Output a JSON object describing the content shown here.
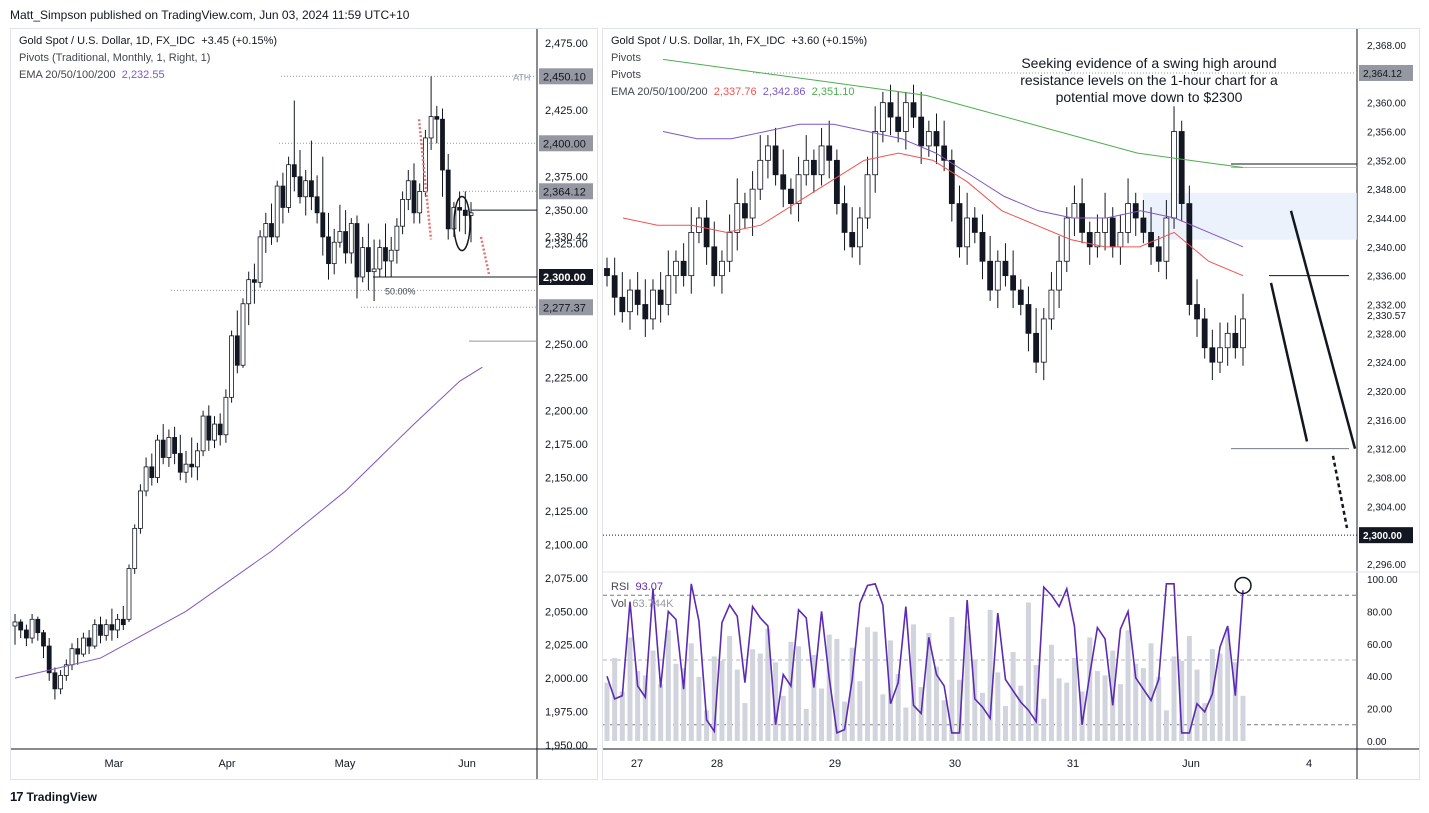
{
  "header": {
    "published": "Matt_Simpson published on TradingView.com, Jun 03, 2024 11:59 UTC+10"
  },
  "footer": {
    "brand": "TradingView"
  },
  "colors": {
    "up": "#ffffff",
    "down": "#131722",
    "ema_red": "#ef5350",
    "ema_purple": "#7e57c2",
    "ema_green": "#4caf50",
    "rsi": "#5b2bb3",
    "arrow_red": "#e57373"
  },
  "chart_data": [
    {
      "type": "candlestick",
      "title": "Gold Spot / U.S. Dollar, 1D, FX_IDC",
      "change": "+3.45 (+0.15%)",
      "legend": [
        "Pivots (Traditional, Monthly, 1, Right, 1)",
        "EMA 20/50/100/200"
      ],
      "ema_value": "2,232.55",
      "y_ticks": [
        "2,475.00",
        "2,450.10",
        "2,425.00",
        "2,400.00",
        "2,375.00",
        "2,364.12",
        "2,350.00",
        "2,330.42",
        "2,325.00",
        "2,300.00",
        "2,277.37",
        "2,250.00",
        "2,225.00",
        "2,200.00",
        "2,175.00",
        "2,150.00",
        "2,125.00",
        "2,100.00",
        "2,075.00",
        "2,050.00",
        "2,025.00",
        "2,000.00",
        "1,975.00",
        "1,950.00"
      ],
      "x_labels": [
        "Mar",
        "Apr",
        "May",
        "Jun"
      ],
      "annotations": {
        "ath": "ATH",
        "fib": "50.00%"
      },
      "price_tags": [
        {
          "label": "2,450.10",
          "value": 2450.1,
          "style": "grey"
        },
        {
          "label": "2,400.00",
          "value": 2400,
          "style": "grey"
        },
        {
          "label": "2,364.12",
          "value": 2364.12,
          "style": "grey"
        },
        {
          "label": "2,330.42",
          "value": 2330.42,
          "style": "plain"
        },
        {
          "label": "2,300.00",
          "value": 2300,
          "style": "black"
        },
        {
          "label": "2,277.37",
          "value": 2277.37,
          "style": "grey"
        }
      ],
      "ohlc": [
        [
          2039,
          2048,
          2025,
          2042
        ],
        [
          2042,
          2044,
          2030,
          2036
        ],
        [
          2036,
          2040,
          2024,
          2030
        ],
        [
          2030,
          2048,
          2026,
          2044
        ],
        [
          2044,
          2046,
          2028,
          2034
        ],
        [
          2034,
          2036,
          2015,
          2024
        ],
        [
          2024,
          2030,
          1998,
          2004
        ],
        [
          2004,
          2008,
          1984,
          1992
        ],
        [
          1992,
          2006,
          1988,
          2002
        ],
        [
          2002,
          2014,
          1998,
          2010
        ],
        [
          2010,
          2026,
          2006,
          2022
        ],
        [
          2022,
          2030,
          2010,
          2018
        ],
        [
          2018,
          2034,
          2016,
          2030
        ],
        [
          2030,
          2036,
          2018,
          2024
        ],
        [
          2024,
          2044,
          2022,
          2040
        ],
        [
          2040,
          2046,
          2026,
          2032
        ],
        [
          2032,
          2044,
          2028,
          2040
        ],
        [
          2040,
          2052,
          2028,
          2036
        ],
        [
          2036,
          2048,
          2030,
          2044
        ],
        [
          2044,
          2054,
          2036,
          2040
        ],
        [
          2044,
          2085,
          2042,
          2082
        ],
        [
          2082,
          2115,
          2078,
          2112
        ],
        [
          2112,
          2145,
          2108,
          2140
        ],
        [
          2140,
          2165,
          2136,
          2158
        ],
        [
          2158,
          2168,
          2144,
          2150
        ],
        [
          2150,
          2182,
          2146,
          2178
        ],
        [
          2178,
          2190,
          2160,
          2165
        ],
        [
          2165,
          2186,
          2158,
          2180
        ],
        [
          2180,
          2188,
          2160,
          2168
        ],
        [
          2168,
          2182,
          2148,
          2154
        ],
        [
          2154,
          2170,
          2146,
          2160
        ],
        [
          2160,
          2180,
          2150,
          2158
        ],
        [
          2158,
          2176,
          2148,
          2170
        ],
        [
          2170,
          2200,
          2166,
          2196
        ],
        [
          2196,
          2204,
          2170,
          2178
        ],
        [
          2178,
          2196,
          2172,
          2190
        ],
        [
          2190,
          2198,
          2174,
          2182
        ],
        [
          2182,
          2216,
          2176,
          2210
        ],
        [
          2210,
          2260,
          2206,
          2256
        ],
        [
          2256,
          2275,
          2228,
          2234
        ],
        [
          2234,
          2284,
          2232,
          2280
        ],
        [
          2280,
          2304,
          2264,
          2298
        ],
        [
          2298,
          2310,
          2280,
          2296
        ],
        [
          2296,
          2335,
          2292,
          2330
        ],
        [
          2330,
          2348,
          2318,
          2340
        ],
        [
          2340,
          2355,
          2324,
          2330
        ],
        [
          2330,
          2372,
          2326,
          2368
        ],
        [
          2368,
          2378,
          2340,
          2352
        ],
        [
          2352,
          2390,
          2348,
          2384
        ],
        [
          2384,
          2432,
          2364,
          2375
        ],
        [
          2375,
          2395,
          2355,
          2360
        ],
        [
          2360,
          2380,
          2346,
          2372
        ],
        [
          2372,
          2402,
          2350,
          2360
        ],
        [
          2360,
          2376,
          2340,
          2348
        ],
        [
          2348,
          2390,
          2316,
          2330
        ],
        [
          2330,
          2348,
          2298,
          2310
        ],
        [
          2310,
          2336,
          2302,
          2326
        ],
        [
          2326,
          2354,
          2322,
          2334
        ],
        [
          2334,
          2350,
          2310,
          2318
        ],
        [
          2318,
          2344,
          2310,
          2340
        ],
        [
          2340,
          2346,
          2284,
          2300
        ],
        [
          2300,
          2330,
          2296,
          2322
        ],
        [
          2322,
          2340,
          2290,
          2304
        ],
        [
          2304,
          2328,
          2282,
          2306
        ],
        [
          2306,
          2328,
          2300,
          2322
        ],
        [
          2322,
          2340,
          2300,
          2312
        ],
        [
          2312,
          2330,
          2300,
          2320
        ],
        [
          2320,
          2344,
          2310,
          2338
        ],
        [
          2338,
          2364,
          2332,
          2358
        ],
        [
          2358,
          2380,
          2350,
          2372
        ],
        [
          2372,
          2385,
          2340,
          2348
        ],
        [
          2348,
          2370,
          2340,
          2364
        ],
        [
          2364,
          2410,
          2360,
          2404
        ],
        [
          2404,
          2450,
          2395,
          2420
        ],
        [
          2420,
          2428,
          2400,
          2418
        ],
        [
          2418,
          2426,
          2360,
          2380
        ],
        [
          2380,
          2392,
          2328,
          2336
        ],
        [
          2336,
          2356,
          2330,
          2352
        ],
        [
          2352,
          2364,
          2334,
          2350
        ],
        [
          2350,
          2364,
          2332,
          2346
        ],
        [
          2346,
          2356,
          2326,
          2348
        ]
      ],
      "ema_points": [
        [
          0,
          2000
        ],
        [
          15,
          2015
        ],
        [
          30,
          2050
        ],
        [
          45,
          2095
        ],
        [
          58,
          2140
        ],
        [
          70,
          2190
        ],
        [
          78,
          2222
        ],
        [
          82,
          2232.55
        ]
      ]
    },
    {
      "type": "candlestick",
      "title": "Gold Spot / U.S. Dollar, 1h, FX_IDC",
      "change": "+3.60 (+0.15%)",
      "legend": [
        "Pivots",
        "Pivots",
        "EMA 20/50/100/200"
      ],
      "ema_values": [
        "2,337.76",
        "2,342.86",
        "2,351.10"
      ],
      "annotation": "Seeking evidence of a swing high around resistance levels on the 1-hour chart for a potential move down to $2300",
      "y_ticks": [
        "2,368.00",
        "2,364.00",
        "2,360.00",
        "2,356.00",
        "2,352.00",
        "2,348.00",
        "2,344.00",
        "2,340.00",
        "2,336.00",
        "2,332.00",
        "2,328.00",
        "2,324.00",
        "2,320.00",
        "2,316.00",
        "2,312.00",
        "2,308.00",
        "2,304.00",
        "2,300.00",
        "2,296.00"
      ],
      "x_labels": [
        "27",
        "28",
        "29",
        "30",
        "31",
        "Jun",
        "4"
      ],
      "price_tags": [
        {
          "label": "2,364.12",
          "value": 2364.12,
          "style": "grey"
        },
        {
          "label": "2,330.57",
          "value": 2330.57,
          "style": "plain"
        },
        {
          "label": "2,300.00",
          "value": 2300,
          "style": "black"
        }
      ],
      "ohlc_summary": "close path",
      "close_path": [
        2336,
        2333,
        2331,
        2334,
        2332,
        2330,
        2334,
        2332,
        2336,
        2338,
        2336,
        2342,
        2344,
        2340,
        2336,
        2338,
        2342,
        2346,
        2344,
        2348,
        2352,
        2354,
        2350,
        2348,
        2346,
        2350,
        2352,
        2350,
        2354,
        2352,
        2346,
        2342,
        2340,
        2344,
        2350,
        2356,
        2360,
        2358,
        2356,
        2360,
        2358,
        2354,
        2356,
        2354,
        2352,
        2346,
        2340,
        2344,
        2342,
        2338,
        2334,
        2338,
        2336,
        2334,
        2332,
        2328,
        2324,
        2330,
        2334,
        2338,
        2344,
        2346,
        2342,
        2340,
        2342,
        2344,
        2340,
        2342,
        2346,
        2344,
        2342,
        2340,
        2338,
        2344,
        2356,
        2346,
        2332,
        2330,
        2326,
        2324,
        2326,
        2328,
        2326,
        2330
      ],
      "ema_red": [
        2344,
        2343,
        2343,
        2342,
        2343,
        2346,
        2349,
        2352,
        2353,
        2352,
        2349,
        2345,
        2343,
        2341,
        2340,
        2340,
        2342,
        2338,
        2336
      ],
      "ema_purple": [
        2356,
        2355,
        2355,
        2356,
        2357,
        2357,
        2356,
        2355,
        2353,
        2350,
        2347,
        2345,
        2344,
        2344,
        2345,
        2344,
        2342,
        2340
      ],
      "ema_green": [
        2366,
        2365,
        2364,
        2363,
        2362,
        2361,
        2359,
        2357,
        2355,
        2353,
        2352,
        2351
      ],
      "rsi": {
        "label": "RSI",
        "value": "93.07",
        "vol_label": "Vol",
        "vol_value": "63.744K",
        "ticks": [
          "100.00",
          "80.00",
          "60.00",
          "40.00",
          "20.00",
          "0.00"
        ]
      }
    }
  ]
}
